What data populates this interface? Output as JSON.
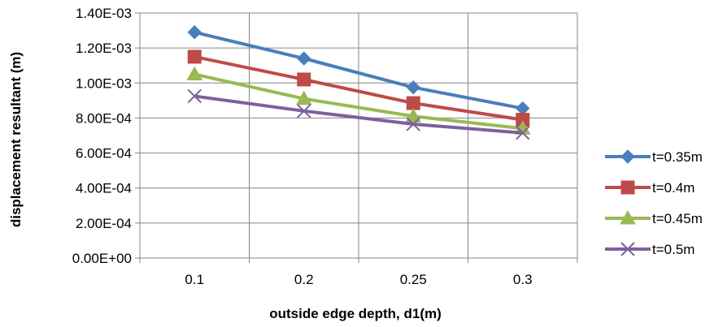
{
  "chart_data": {
    "type": "line",
    "title": "",
    "xlabel": "outside edge depth, d1(m)",
    "ylabel": "displacement resultant (m)",
    "categories": [
      "0.1",
      "0.2",
      "0.25",
      "0.3"
    ],
    "ylim": [
      0,
      0.0014
    ],
    "y_ticks": [
      "0.00E+00",
      "2.00E-04",
      "4.00E-04",
      "6.00E-04",
      "8.00E-04",
      "1.00E-03",
      "1.20E-03",
      "1.40E-03"
    ],
    "grid": true,
    "legend_position": "right",
    "series": [
      {
        "name": "t=0.35m",
        "values": [
          0.00129,
          0.00114,
          0.000975,
          0.000855
        ],
        "color": "#4a7ebb",
        "marker": "diamond"
      },
      {
        "name": "t=0.4m",
        "values": [
          0.00115,
          0.00102,
          0.000885,
          0.00079
        ],
        "color": "#be4b48",
        "marker": "square"
      },
      {
        "name": "t=0.45m",
        "values": [
          0.00105,
          0.00091,
          0.00081,
          0.00074
        ],
        "color": "#98b954",
        "marker": "triangle"
      },
      {
        "name": "t=0.5m",
        "values": [
          0.000925,
          0.00084,
          0.000765,
          0.000715
        ],
        "color": "#7d60a0",
        "marker": "x"
      }
    ]
  }
}
